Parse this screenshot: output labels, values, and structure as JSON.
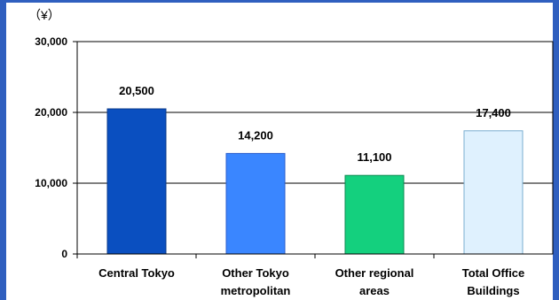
{
  "chart_data": {
    "type": "bar",
    "unit_label": "（¥）",
    "categories": [
      [
        "Central Tokyo"
      ],
      [
        "Other Tokyo",
        "metropolitan"
      ],
      [
        "Other regional",
        "areas"
      ],
      [
        "Total Office",
        "Buildings"
      ]
    ],
    "values": [
      20500,
      14200,
      11100,
      17400
    ],
    "data_labels": [
      "20,500",
      "14,200",
      "11,100",
      "17,400"
    ],
    "yticks": [
      0,
      10000,
      20000,
      30000
    ],
    "ytick_labels": [
      "0",
      "10,000",
      "20,000",
      "30,000"
    ],
    "ylim": [
      0,
      30000
    ],
    "grid": true,
    "colors": [
      "#0a4fc0",
      "#3a86ff",
      "#14d07e",
      "#dff1fe"
    ],
    "bar_stroke": [
      "#0a3a8a",
      "#2a5ecc",
      "#0a8a50",
      "#7aaed0"
    ]
  }
}
